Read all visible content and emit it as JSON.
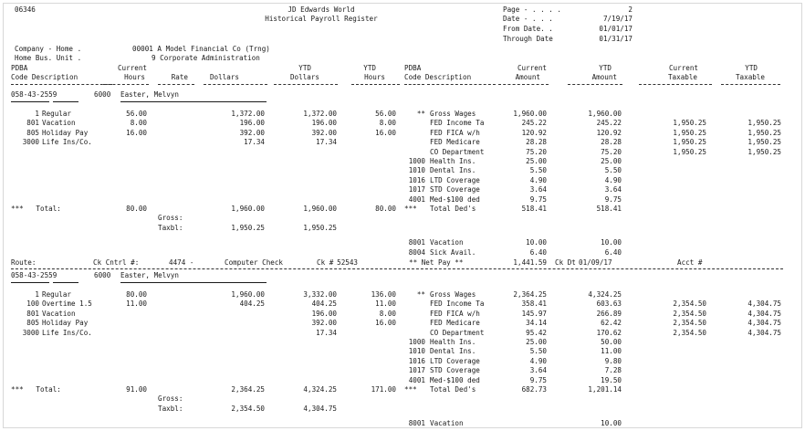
{
  "header": {
    "report_id": "06346",
    "company_name": "JD Edwards World",
    "title": "Historical Payroll Register",
    "page_label": "Page - . . . .",
    "page_value": "2",
    "date_label": "Date - . . .",
    "date_value": "7/19/17",
    "from_label": "From Date. .",
    "from_value": "01/01/17",
    "through_label": "Through Date",
    "through_value": "01/31/17",
    "company_line": "Company - Home .",
    "company_value": "00001 A Model Financial Co (Trng)",
    "bu_line": "Home Bus. Unit .",
    "bu_value": "9 Corporate Administration"
  },
  "columns": {
    "pdba1": "PDBA",
    "code_desc1": "Code Description",
    "current": "Current",
    "hours": "Hours",
    "rate": "Rate",
    "dollars": "Dollars",
    "ytd1": "YTD",
    "dollars2": "Dollars",
    "ytd2": "YTD",
    "hours2": "Hours",
    "pdba2": "PDBA",
    "code_desc2": "Code Description",
    "current2": "Current",
    "amount": "Amount",
    "ytd3": "YTD",
    "amount2": "Amount",
    "current3": "Current",
    "taxable": "Taxable",
    "ytd4": "YTD",
    "taxable2": "Taxable"
  },
  "sections": [
    {
      "emp_ssn": "058-43-2559",
      "emp_no": "6000",
      "emp_name": "Easter, Melvyn",
      "earnings": [
        {
          "code": "1",
          "desc": "Regular",
          "hours": "56.00",
          "rate": "",
          "dollars": "1,372.00",
          "ytd_dollars": "1,372.00",
          "ytd_hours": "56.00"
        },
        {
          "code": "801",
          "desc": "Vacation",
          "hours": "8.00",
          "rate": "",
          "dollars": "196.00",
          "ytd_dollars": "196.00",
          "ytd_hours": "8.00"
        },
        {
          "code": "805",
          "desc": "Holiday Pay",
          "hours": "16.00",
          "rate": "",
          "dollars": "392.00",
          "ytd_dollars": "392.00",
          "ytd_hours": "16.00"
        },
        {
          "code": "3000",
          "desc": "Life Ins/Co.",
          "hours": "",
          "rate": "",
          "dollars": "17.34",
          "ytd_dollars": "17.34",
          "ytd_hours": ""
        }
      ],
      "deductions": [
        {
          "code": "**",
          "desc": "Gross Wages",
          "amount": "1,960.00",
          "ytd": "1,960.00",
          "cur_tax": "",
          "ytd_tax": ""
        },
        {
          "code": "",
          "desc": "FED Income Ta",
          "amount": "245.22",
          "ytd": "245.22",
          "cur_tax": "1,950.25",
          "ytd_tax": "1,950.25"
        },
        {
          "code": "",
          "desc": "FED FICA w/h",
          "amount": "120.92",
          "ytd": "120.92",
          "cur_tax": "1,950.25",
          "ytd_tax": "1,950.25"
        },
        {
          "code": "",
          "desc": "FED Medicare",
          "amount": "28.28",
          "ytd": "28.28",
          "cur_tax": "1,950.25",
          "ytd_tax": "1,950.25"
        },
        {
          "code": "",
          "desc": "CO Department",
          "amount": "75.20",
          "ytd": "75.20",
          "cur_tax": "1,950.25",
          "ytd_tax": "1,950.25"
        },
        {
          "code": "1000",
          "desc": "Health Ins.",
          "amount": "25.00",
          "ytd": "25.00",
          "cur_tax": "",
          "ytd_tax": ""
        },
        {
          "code": "1010",
          "desc": "Dental Ins.",
          "amount": "5.50",
          "ytd": "5.50",
          "cur_tax": "",
          "ytd_tax": ""
        },
        {
          "code": "1016",
          "desc": "LTD Coverage",
          "amount": "4.90",
          "ytd": "4.90",
          "cur_tax": "",
          "ytd_tax": ""
        },
        {
          "code": "1017",
          "desc": "STD Coverage",
          "amount": "3.64",
          "ytd": "3.64",
          "cur_tax": "",
          "ytd_tax": ""
        },
        {
          "code": "4001",
          "desc": "Med-$100 ded",
          "amount": "9.75",
          "ytd": "9.75",
          "cur_tax": "",
          "ytd_tax": ""
        }
      ],
      "total": {
        "label": "***   Total:",
        "hours": "80.00",
        "dollars": "1,960.00",
        "ytd_dollars": "1,960.00",
        "ytd_hours": "80.00",
        "code": "***",
        "desc": "Total Ded's",
        "amount": "518.41",
        "ytd": "518.41"
      },
      "gross_label": "Gross:",
      "taxbl_label": "Taxbl:",
      "taxbl_dollars": "1,950.25",
      "taxbl_ytd": "1,950.25",
      "accruals": [
        {
          "code": "8001",
          "desc": "Vacation",
          "amount": "10.00",
          "ytd": "10.00"
        },
        {
          "code": "8004",
          "desc": "Sick Avail.",
          "amount": "6.40",
          "ytd": "6.40"
        }
      ],
      "route": {
        "route_label": "Route:",
        "ck_cntrl_label": "Ck Cntrl #:",
        "ck_cntrl": "4474 -",
        "check_type": "Computer Check",
        "ck_label": "Ck #",
        "ck_no": "52543",
        "net_label": "** Net Pay **",
        "net_amount": "1,441.59",
        "ck_dt_label": "Ck Dt",
        "ck_dt": "01/09/17",
        "acct_label": "Acct #"
      }
    },
    {
      "emp_ssn": "058-43-2559",
      "emp_no": "6000",
      "emp_name": "Easter, Melvyn",
      "earnings": [
        {
          "code": "1",
          "desc": "Regular",
          "hours": "80.00",
          "rate": "",
          "dollars": "1,960.00",
          "ytd_dollars": "3,332.00",
          "ytd_hours": "136.00"
        },
        {
          "code": "100",
          "desc": "Overtime 1.5",
          "hours": "11.00",
          "rate": "",
          "dollars": "404.25",
          "ytd_dollars": "404.25",
          "ytd_hours": "11.00"
        },
        {
          "code": "801",
          "desc": "Vacation",
          "hours": "",
          "rate": "",
          "dollars": "",
          "ytd_dollars": "196.00",
          "ytd_hours": "8.00"
        },
        {
          "code": "805",
          "desc": "Holiday Pay",
          "hours": "",
          "rate": "",
          "dollars": "",
          "ytd_dollars": "392.00",
          "ytd_hours": "16.00"
        },
        {
          "code": "3000",
          "desc": "Life Ins/Co.",
          "hours": "",
          "rate": "",
          "dollars": "",
          "ytd_dollars": "17.34",
          "ytd_hours": ""
        }
      ],
      "deductions": [
        {
          "code": "**",
          "desc": "Gross Wages",
          "amount": "2,364.25",
          "ytd": "4,324.25",
          "cur_tax": "",
          "ytd_tax": ""
        },
        {
          "code": "",
          "desc": "FED Income Ta",
          "amount": "358.41",
          "ytd": "603.63",
          "cur_tax": "2,354.50",
          "ytd_tax": "4,304.75"
        },
        {
          "code": "",
          "desc": "FED FICA w/h",
          "amount": "145.97",
          "ytd": "266.89",
          "cur_tax": "2,354.50",
          "ytd_tax": "4,304.75"
        },
        {
          "code": "",
          "desc": "FED Medicare",
          "amount": "34.14",
          "ytd": "62.42",
          "cur_tax": "2,354.50",
          "ytd_tax": "4,304.75"
        },
        {
          "code": "",
          "desc": "CO Department",
          "amount": "95.42",
          "ytd": "170.62",
          "cur_tax": "2,354.50",
          "ytd_tax": "4,304.75"
        },
        {
          "code": "1000",
          "desc": "Health Ins.",
          "amount": "25.00",
          "ytd": "50.00",
          "cur_tax": "",
          "ytd_tax": ""
        },
        {
          "code": "1010",
          "desc": "Dental Ins.",
          "amount": "5.50",
          "ytd": "11.00",
          "cur_tax": "",
          "ytd_tax": ""
        },
        {
          "code": "1016",
          "desc": "LTD Coverage",
          "amount": "4.90",
          "ytd": "9.80",
          "cur_tax": "",
          "ytd_tax": ""
        },
        {
          "code": "1017",
          "desc": "STD Coverage",
          "amount": "3.64",
          "ytd": "7.28",
          "cur_tax": "",
          "ytd_tax": ""
        },
        {
          "code": "4001",
          "desc": "Med-$100 ded",
          "amount": "9.75",
          "ytd": "19.50",
          "cur_tax": "",
          "ytd_tax": ""
        }
      ],
      "total": {
        "label": "***   Total:",
        "hours": "91.00",
        "dollars": "2,364.25",
        "ytd_dollars": "4,324.25",
        "ytd_hours": "171.00",
        "code": "***",
        "desc": "Total Ded's",
        "amount": "682.73",
        "ytd": "1,201.14"
      },
      "gross_label": "Gross:",
      "taxbl_label": "Taxbl:",
      "taxbl_dollars": "2,354.50",
      "taxbl_ytd": "4,304.75",
      "accruals": [
        {
          "code": "8001",
          "desc": "Vacation",
          "amount": "",
          "ytd": "10.00"
        }
      ]
    }
  ]
}
